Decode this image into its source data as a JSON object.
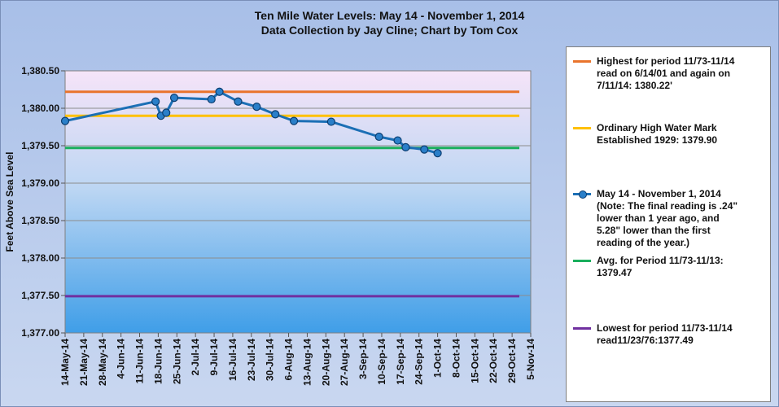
{
  "title_line1": "Ten Mile Water Levels: May 14 - November 1, 2014",
  "title_line2": "Data Collection by Jay Cline; Chart by Tom Cox",
  "colors": {
    "highest": "#e9742c",
    "ohwm": "#ffc000",
    "series": "#1b6fb5",
    "average": "#1aaf5d",
    "lowest": "#7030a0",
    "plot_bg_top": "#f6e4f8",
    "plot_bg_bottom": "#3f9ee8",
    "page_bg": "#b3c7ea"
  },
  "legend": [
    {
      "key": "highest",
      "text": "Highest  for period 11/73-11/14\nread on 6/14/01 and again on\n7/11/14: 1380.22'",
      "markers": false
    },
    {
      "key": "ohwm",
      "text": "Ordinary High Water Mark\nEstablished 1929: 1379.90",
      "markers": false
    },
    {
      "key": "series",
      "text": "May 14 - November 1, 2014\n(Note:  The final reading is .24\"\nlower than 1 year ago, and\n5.28\" lower than the first\nreading of the year.)",
      "markers": true
    },
    {
      "key": "average",
      "text": "Avg. for Period 11/73-11/13:\n1379.47",
      "markers": false
    },
    {
      "key": "lowest",
      "text": "Lowest for period 11/73-11/14\nread11/23/76:1377.49",
      "markers": false
    }
  ],
  "chart_data": {
    "type": "line",
    "title": "Ten Mile Water Levels: May 14 - November 1, 2014",
    "subtitle": "Data Collection by Jay Cline; Chart by Tom Cox",
    "xlabel": "",
    "ylabel": "Feet Above Sea Level",
    "ylim": [
      1377.0,
      1380.5
    ],
    "y_ticks": [
      1377.0,
      1377.5,
      1378.0,
      1378.5,
      1379.0,
      1379.5,
      1380.0,
      1380.5
    ],
    "y_tick_labels": [
      "1,377.00",
      "1,377.50",
      "1,378.00",
      "1,378.50",
      "1,379.00",
      "1,379.50",
      "1,380.00",
      "1,380.50"
    ],
    "xlim": [
      "2014-05-14",
      "2014-11-05"
    ],
    "x_ticks": [
      "2014-05-14",
      "2014-05-21",
      "2014-05-28",
      "2014-06-04",
      "2014-06-11",
      "2014-06-18",
      "2014-06-25",
      "2014-07-02",
      "2014-07-09",
      "2014-07-16",
      "2014-07-23",
      "2014-07-30",
      "2014-08-06",
      "2014-08-13",
      "2014-08-20",
      "2014-08-27",
      "2014-09-03",
      "2014-09-10",
      "2014-09-17",
      "2014-09-24",
      "2014-10-01",
      "2014-10-08",
      "2014-10-15",
      "2014-10-22",
      "2014-10-29",
      "2014-11-05"
    ],
    "x_tick_labels": [
      "14-May-14",
      "21-May-14",
      "28-May-14",
      "4-Jun-14",
      "11-Jun-14",
      "18-Jun-14",
      "25-Jun-14",
      "2-Jul-14",
      "9-Jul-14",
      "16-Jul-14",
      "23-Jul-14",
      "30-Jul-14",
      "6-Aug-14",
      "13-Aug-14",
      "20-Aug-14",
      "27-Aug-14",
      "3-Sep-14",
      "10-Sep-14",
      "17-Sep-14",
      "24-Sep-14",
      "1-Oct-14",
      "8-Oct-14",
      "15-Oct-14",
      "22-Oct-14",
      "29-Oct-14",
      "5-Nov-14"
    ],
    "grid": true,
    "legend_position": "right",
    "reference_lines": [
      {
        "key": "highest",
        "value": 1380.22
      },
      {
        "key": "ohwm",
        "value": 1379.9
      },
      {
        "key": "average",
        "value": 1379.47
      },
      {
        "key": "lowest",
        "value": 1377.49
      }
    ],
    "series": [
      {
        "key": "series",
        "x": [
          "2014-05-14",
          "2014-06-17",
          "2014-06-19",
          "2014-06-21",
          "2014-06-24",
          "2014-07-08",
          "2014-07-11",
          "2014-07-18",
          "2014-07-25",
          "2014-08-01",
          "2014-08-08",
          "2014-08-22",
          "2014-09-09",
          "2014-09-16",
          "2014-09-19",
          "2014-09-26",
          "2014-10-01"
        ],
        "values": [
          1379.83,
          1380.09,
          1379.9,
          1379.94,
          1380.14,
          1380.12,
          1380.22,
          1380.09,
          1380.02,
          1379.92,
          1379.83,
          1379.82,
          1379.62,
          1379.57,
          1379.48,
          1379.45,
          1379.4
        ]
      }
    ]
  }
}
